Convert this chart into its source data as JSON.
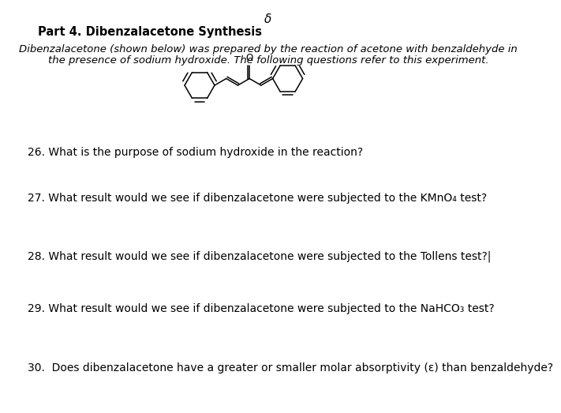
{
  "background_color": "#ffffff",
  "top_delta": "δ",
  "title": "Part 4. Dibenzalacetone Synthesis",
  "intro_line1": "Dibenzalacetone (shown below) was prepared by the reaction of acetone with benzaldehyde in",
  "intro_line2": "the presence of sodium hydroxide. The following questions refer to this experiment.",
  "q26": "26. What is the purpose of sodium hydroxide in the reaction?",
  "q27": "27. What result would we see if dibenzalacetone were subjected to the KMnO₄ test?",
  "q28": "28. What result would we see if dibenzalacetone were subjected to the Tollens test?|",
  "q29": "29. What result would we see if dibenzalacetone were subjected to the NaHCO₃ test?",
  "q30": "30.  Does dibenzalacetone have a greater or smaller molar absorptivity (ε) than benzaldehyde?",
  "text_color": "#000000",
  "font_size_title": 10.5,
  "font_size_body": 9.5,
  "font_size_q": 10.0,
  "font_size_delta": 11
}
